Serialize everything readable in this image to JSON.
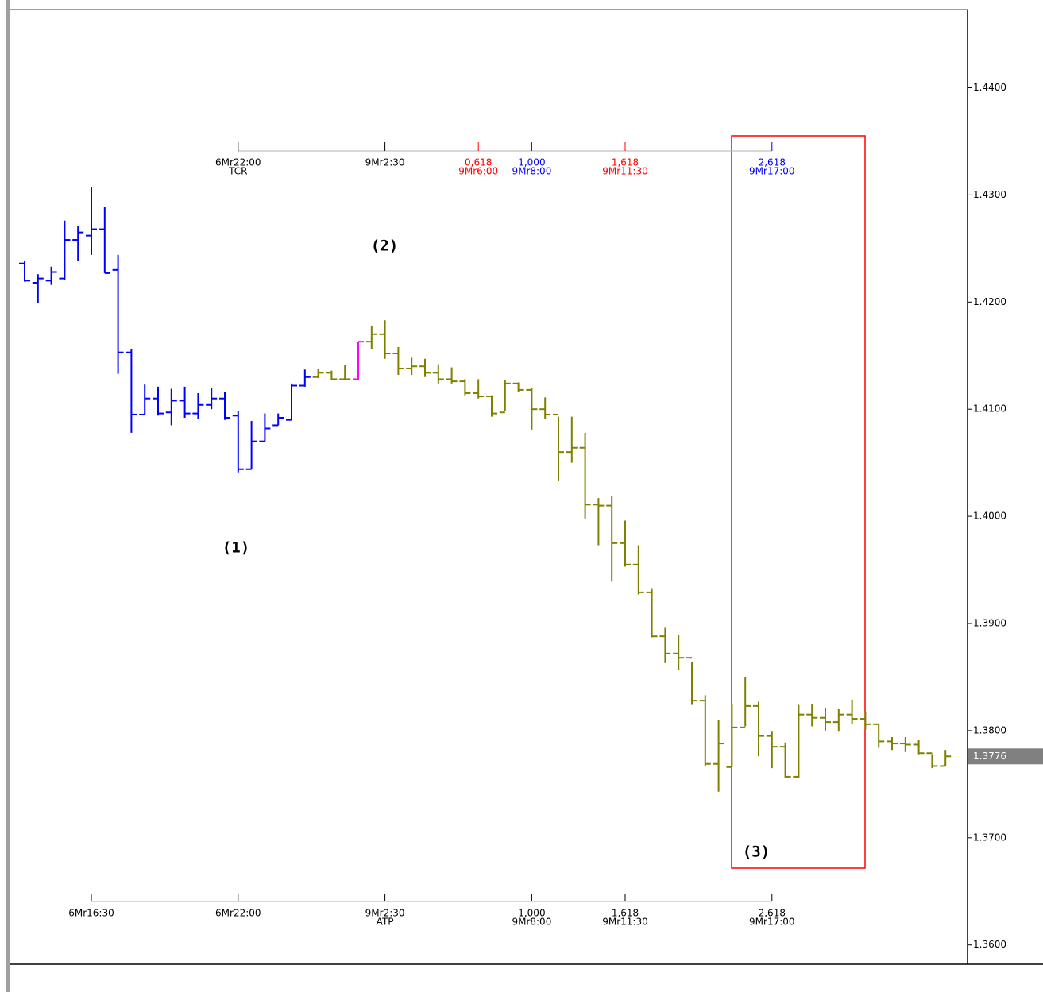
{
  "chart_data": {
    "type": "ohlc",
    "open": [
      1.4236,
      1.4218,
      1.422,
      1.4222,
      1.4258,
      1.4262,
      1.4268,
      1.423,
      1.4153,
      1.4095,
      1.411,
      1.4097,
      1.4108,
      1.4096,
      1.4104,
      1.411,
      1.4094,
      1.4044,
      1.407,
      1.4085,
      1.409,
      1.4122,
      1.413,
      1.4134,
      1.4128,
      1.4128,
      1.4163,
      1.417,
      1.4152,
      1.4138,
      1.414,
      1.4134,
      1.4128,
      1.4126,
      1.4115,
      1.4112,
      1.4097,
      1.4124,
      1.4118,
      1.41,
      1.4095,
      1.406,
      1.4064,
      1.4011,
      1.401,
      1.3975,
      1.3955,
      1.3929,
      1.3888,
      1.3872,
      1.3868,
      1.3828,
      1.3769,
      1.3766,
      1.3803,
      1.3823,
      1.3795,
      1.3785,
      1.3757,
      1.3815,
      1.3812,
      1.3808,
      1.3815,
      1.3811,
      1.3806,
      1.379,
      1.3788,
      1.3787,
      1.3779,
      1.3767
    ],
    "high": [
      1.4238,
      1.4226,
      1.4233,
      1.4276,
      1.4271,
      1.4307,
      1.4289,
      1.4244,
      1.4156,
      1.4123,
      1.4121,
      1.4119,
      1.4121,
      1.4115,
      1.412,
      1.4116,
      1.4098,
      1.4089,
      1.4096,
      1.4096,
      1.4124,
      1.4137,
      1.4138,
      1.4136,
      1.4141,
      1.4163,
      1.4178,
      1.4183,
      1.4158,
      1.4148,
      1.4147,
      1.4142,
      1.4139,
      1.4128,
      1.4128,
      1.4113,
      1.4127,
      1.4125,
      1.412,
      1.4111,
      1.4093,
      1.4093,
      1.4078,
      1.4017,
      1.4019,
      1.3996,
      1.3973,
      1.3933,
      1.3896,
      1.3889,
      1.3864,
      1.3833,
      1.381,
      1.3825,
      1.385,
      1.3827,
      1.3799,
      1.3789,
      1.3824,
      1.3825,
      1.3821,
      1.382,
      1.3829,
      1.3818,
      1.3806,
      1.3794,
      1.3794,
      1.3791,
      1.3778,
      1.3782
    ],
    "low": [
      1.4219,
      1.4199,
      1.4216,
      1.4221,
      1.4238,
      1.4244,
      1.4227,
      1.4133,
      1.4078,
      1.4095,
      1.4094,
      1.4085,
      1.4092,
      1.4091,
      1.41,
      1.409,
      1.4041,
      1.4044,
      1.407,
      1.4085,
      1.409,
      1.4121,
      1.4129,
      1.4127,
      1.4127,
      1.4127,
      1.4156,
      1.4147,
      1.4132,
      1.4132,
      1.413,
      1.4124,
      1.4124,
      1.4113,
      1.411,
      1.4093,
      1.4098,
      1.4116,
      1.4081,
      1.4091,
      1.4033,
      1.405,
      1.3998,
      1.3973,
      1.3939,
      1.3953,
      1.3927,
      1.3887,
      1.3863,
      1.3857,
      1.3824,
      1.3767,
      1.3743,
      1.3766,
      1.3804,
      1.3776,
      1.3765,
      1.3756,
      1.3756,
      1.3804,
      1.38,
      1.3799,
      1.3806,
      1.3801,
      1.3784,
      1.3782,
      1.378,
      1.3778,
      1.3765,
      1.3767
    ],
    "close": [
      1.422,
      1.4222,
      1.4228,
      1.4258,
      1.4265,
      1.4268,
      1.4227,
      1.4153,
      1.4095,
      1.411,
      1.4096,
      1.4108,
      1.4096,
      1.4104,
      1.411,
      1.4092,
      1.4044,
      1.407,
      1.4082,
      1.4092,
      1.4122,
      1.413,
      1.4134,
      1.4128,
      1.4128,
      1.4163,
      1.417,
      1.4152,
      1.4138,
      1.414,
      1.4134,
      1.4128,
      1.4126,
      1.4115,
      1.4112,
      1.4096,
      1.4124,
      1.4118,
      1.41,
      1.4095,
      1.406,
      1.4064,
      1.4011,
      1.401,
      1.3975,
      1.3955,
      1.3929,
      1.3888,
      1.3872,
      1.3868,
      1.3828,
      1.3769,
      1.3788,
      1.3803,
      1.3823,
      1.3795,
      1.3785,
      1.3757,
      1.3815,
      1.3812,
      1.3808,
      1.3815,
      1.3811,
      1.3806,
      1.379,
      1.3788,
      1.3787,
      1.3779,
      1.3767,
      1.3776
    ],
    "bar_colors": [
      "#0000ff",
      "#0000ff",
      "#0000ff",
      "#0000ff",
      "#0000ff",
      "#0000ff",
      "#0000ff",
      "#0000ff",
      "#0000ff",
      "#0000ff",
      "#0000ff",
      "#0000ff",
      "#0000ff",
      "#0000ff",
      "#0000ff",
      "#0000ff",
      "#0000ff",
      "#0000ff",
      "#0000ff",
      "#0000ff",
      "#0000ff",
      "#0000ff",
      "#808000",
      "#808000",
      "#808000",
      "#ff00ff",
      "#808000",
      "#808000",
      "#808000",
      "#808000",
      "#808000",
      "#808000",
      "#808000",
      "#808000",
      "#808000",
      "#808000",
      "#808000",
      "#808000",
      "#808000",
      "#808000",
      "#808000",
      "#808000",
      "#808000",
      "#808000",
      "#808000",
      "#808000",
      "#808000",
      "#808000",
      "#808000",
      "#808000",
      "#808000",
      "#808000",
      "#808000",
      "#808000",
      "#808000",
      "#808000",
      "#808000",
      "#808000",
      "#808000",
      "#808000",
      "#808000",
      "#808000",
      "#808000",
      "#808000",
      "#808000",
      "#808000",
      "#808000",
      "#808000",
      "#808000",
      "#808000"
    ],
    "ylim": [
      1.3582,
      1.4473
    ],
    "yticks": [
      {
        "value": 1.36,
        "label": "1.3600"
      },
      {
        "value": 1.37,
        "label": "1.3700"
      },
      {
        "value": 1.38,
        "label": "1.3800"
      },
      {
        "value": 1.39,
        "label": "1.3900"
      },
      {
        "value": 1.4,
        "label": "1.4000"
      },
      {
        "value": 1.41,
        "label": "1.4100"
      },
      {
        "value": 1.42,
        "label": "1.4200"
      },
      {
        "value": 1.43,
        "label": "1.4300"
      },
      {
        "value": 1.44,
        "label": "1.4400"
      }
    ],
    "last_price": 1.3776,
    "time_projection_top": [
      {
        "bar": 16,
        "lines": [
          "6Mr22:00",
          "TCR"
        ],
        "color": "#000000"
      },
      {
        "bar": 27,
        "lines": [
          "9Mr2:30"
        ],
        "color": "#000000"
      },
      {
        "bar": 34,
        "lines": [
          "0,618",
          "9Mr6:00"
        ],
        "color": "#ff0000"
      },
      {
        "bar": 38,
        "lines": [
          "1,000",
          "9Mr8:00"
        ],
        "color": "#0000ff"
      },
      {
        "bar": 45,
        "lines": [
          "1,618",
          "9Mr11:30"
        ],
        "color": "#ff0000"
      },
      {
        "bar": 56,
        "lines": [
          "2,618",
          "9Mr17:00"
        ],
        "color": "#0000ff"
      }
    ],
    "time_projection_bottom": [
      {
        "bar": 5,
        "lines": [
          "6Mr16:30"
        ],
        "color": "#000000"
      },
      {
        "bar": 16,
        "lines": [
          "6Mr22:00"
        ],
        "color": "#000000"
      },
      {
        "bar": 27,
        "lines": [
          "9Mr2:30",
          "ATP"
        ],
        "color": "#000000"
      },
      {
        "bar": 38,
        "lines": [
          "1,000",
          "9Mr8:00"
        ],
        "color": "#000000"
      },
      {
        "bar": 45,
        "lines": [
          "1,618",
          "9Mr11:30"
        ],
        "color": "#000000"
      },
      {
        "bar": 56,
        "lines": [
          "2,618",
          "9Mr17:00"
        ],
        "color": "#000000"
      }
    ],
    "annotations": [
      "(1)",
      "(2)",
      "(3)"
    ]
  }
}
